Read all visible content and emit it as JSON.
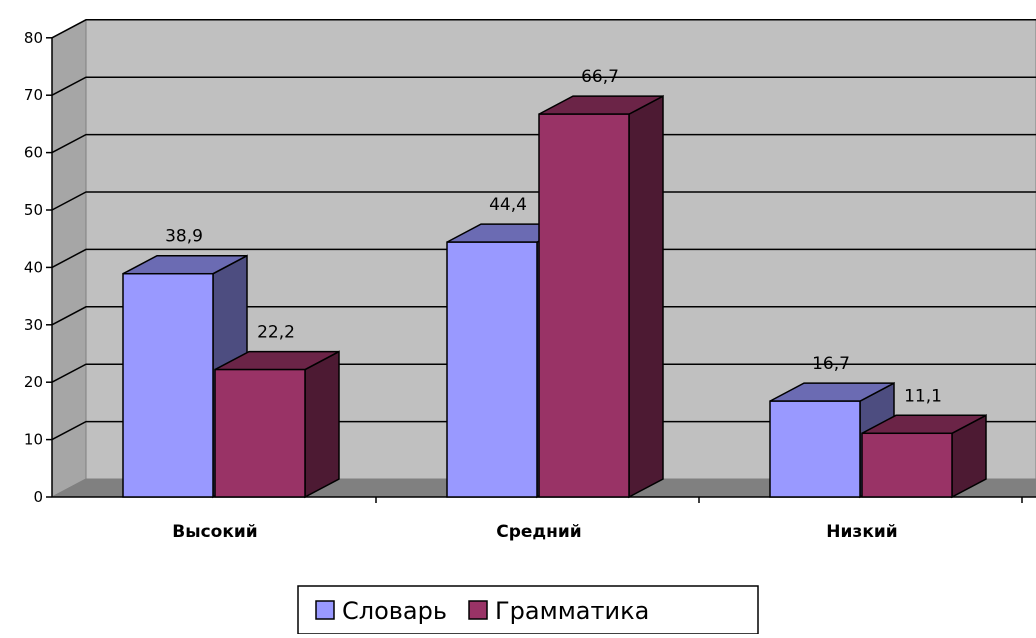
{
  "chart_data": {
    "type": "bar",
    "categories": [
      "Высокий",
      "Средний",
      "Низкий"
    ],
    "series": [
      {
        "name": "Словарь",
        "values": [
          38.9,
          44.4,
          16.7
        ],
        "labels": [
          "38,9",
          "44,4",
          "16,7"
        ],
        "color": "#9999ff"
      },
      {
        "name": "Грамматика",
        "values": [
          22.2,
          66.7,
          11.1
        ],
        "labels": [
          "22,2",
          "66,7",
          "11,1"
        ],
        "color": "#993366"
      }
    ],
    "yticks": [
      "0",
      "10",
      "20",
      "30",
      "40",
      "50",
      "60",
      "70",
      "80"
    ],
    "ylim": [
      0,
      80
    ],
    "grid": true,
    "legend_position": "bottom",
    "style": "3d-clustered-column"
  }
}
